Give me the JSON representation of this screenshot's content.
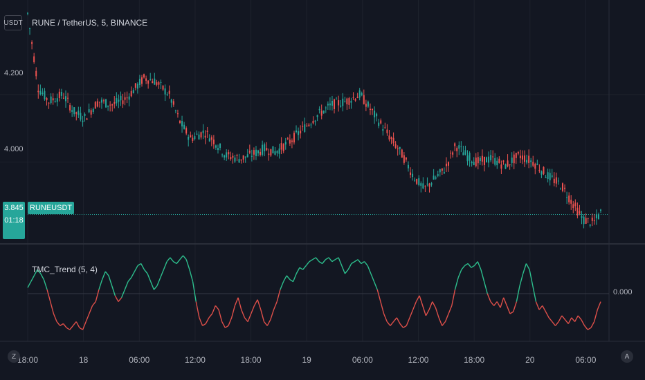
{
  "toolbar": {
    "currency_button": "USDT"
  },
  "main_chart": {
    "title": "RUNE / TetherUS, 5, BINANCE",
    "y_labels": [
      "4.200",
      "4.000"
    ],
    "last_price": "3.845",
    "countdown": "01:18",
    "symbol_tag": "RUNEUSDT"
  },
  "indicator": {
    "title": "TMC_Trend (5, 4)",
    "y_label": "0.000",
    "colors": {
      "up": "#26a69a",
      "down": "#ef5350",
      "line_up": "#2dc08e",
      "line_down": "#e0504a"
    }
  },
  "time_axis": {
    "labels": [
      "18:00",
      "18",
      "06:00",
      "12:00",
      "18:00",
      "19",
      "06:00",
      "12:00",
      "18:00",
      "20",
      "06:00"
    ]
  },
  "corner_buttons": {
    "left": "Z",
    "right": "A"
  },
  "chart_data": [
    {
      "type": "candlestick",
      "title": "RUNE / TetherUS, 5, BINANCE",
      "x": [
        "18:00",
        "18",
        "06:00",
        "12:00",
        "18:00",
        "19",
        "06:00",
        "12:00",
        "18:00",
        "20",
        "06:00"
      ],
      "ylim": [
        3.76,
        4.48
      ],
      "yticks": [
        4.2,
        4.0
      ],
      "close_path": [
        [
          0,
          4.44
        ],
        [
          0.3,
          4.22
        ],
        [
          0.6,
          4.18
        ],
        [
          1.0,
          4.2
        ],
        [
          1.3,
          4.15
        ],
        [
          1.6,
          4.13
        ],
        [
          2.0,
          4.18
        ],
        [
          2.4,
          4.17
        ],
        [
          2.8,
          4.19
        ],
        [
          3.3,
          4.25
        ],
        [
          3.6,
          4.24
        ],
        [
          4.0,
          4.2
        ],
        [
          4.3,
          4.12
        ],
        [
          4.6,
          4.07
        ],
        [
          5.0,
          4.09
        ],
        [
          5.3,
          4.06
        ],
        [
          5.6,
          4.02
        ],
        [
          6.0,
          4.01
        ],
        [
          6.3,
          4.02
        ],
        [
          6.7,
          4.04
        ],
        [
          7.0,
          4.03
        ],
        [
          7.4,
          4.06
        ],
        [
          7.8,
          4.1
        ],
        [
          8.2,
          4.14
        ],
        [
          8.6,
          4.17
        ],
        [
          9.0,
          4.18
        ],
        [
          9.4,
          4.2
        ],
        [
          9.8,
          4.14
        ],
        [
          10.2,
          4.08
        ],
        [
          10.6,
          4.02
        ],
        [
          10.9,
          3.96
        ],
        [
          11.2,
          3.92
        ],
        [
          11.5,
          3.95
        ],
        [
          11.8,
          3.98
        ],
        [
          12.1,
          4.05
        ],
        [
          12.4,
          4.02
        ],
        [
          12.7,
          4.0
        ],
        [
          13.1,
          4.01
        ],
        [
          13.5,
          3.99
        ],
        [
          13.9,
          4.02
        ],
        [
          14.3,
          4.0
        ],
        [
          14.7,
          3.96
        ],
        [
          15.1,
          3.93
        ],
        [
          15.4,
          3.88
        ],
        [
          15.7,
          3.83
        ],
        [
          16.0,
          3.82
        ],
        [
          16.2,
          3.85
        ]
      ],
      "last_price": 3.845
    },
    {
      "type": "line",
      "title": "TMC_Trend (5, 4)",
      "ylim": [
        -1,
        1
      ],
      "reference_line": 0.0,
      "values": [
        0.15,
        0.3,
        0.45,
        0.6,
        0.5,
        0.35,
        0.1,
        -0.2,
        -0.5,
        -0.7,
        -0.8,
        -0.75,
        -0.85,
        -0.9,
        -0.8,
        -0.7,
        -0.85,
        -0.9,
        -0.7,
        -0.5,
        -0.3,
        -0.2,
        0.1,
        0.35,
        0.55,
        0.45,
        0.2,
        -0.05,
        -0.2,
        -0.1,
        0.1,
        0.3,
        0.4,
        0.55,
        0.7,
        0.75,
        0.6,
        0.5,
        0.3,
        0.1,
        0.2,
        0.4,
        0.6,
        0.8,
        0.9,
        0.8,
        0.75,
        0.85,
        0.95,
        0.85,
        0.6,
        0.3,
        -0.2,
        -0.6,
        -0.8,
        -0.75,
        -0.6,
        -0.5,
        -0.3,
        -0.4,
        -0.7,
        -0.85,
        -0.8,
        -0.6,
        -0.3,
        -0.1,
        -0.4,
        -0.6,
        -0.7,
        -0.5,
        -0.3,
        -0.15,
        -0.4,
        -0.7,
        -0.8,
        -0.65,
        -0.4,
        -0.2,
        0.1,
        0.3,
        0.45,
        0.35,
        0.3,
        0.5,
        0.65,
        0.6,
        0.7,
        0.8,
        0.85,
        0.9,
        0.8,
        0.75,
        0.85,
        0.9,
        0.8,
        0.85,
        0.9,
        0.7,
        0.5,
        0.6,
        0.75,
        0.8,
        0.85,
        0.75,
        0.8,
        0.7,
        0.5,
        0.3,
        0.1,
        -0.2,
        -0.5,
        -0.7,
        -0.8,
        -0.7,
        -0.6,
        -0.75,
        -0.85,
        -0.8,
        -0.6,
        -0.4,
        -0.2,
        -0.05,
        -0.3,
        -0.55,
        -0.4,
        -0.2,
        -0.35,
        -0.6,
        -0.8,
        -0.7,
        -0.5,
        -0.3,
        0.1,
        0.4,
        0.6,
        0.7,
        0.75,
        0.65,
        0.7,
        0.8,
        0.6,
        0.3,
        0.0,
        -0.2,
        -0.3,
        -0.2,
        -0.35,
        -0.1,
        -0.3,
        -0.5,
        -0.45,
        -0.2,
        0.2,
        0.5,
        0.75,
        0.6,
        0.2,
        -0.2,
        -0.4,
        -0.3,
        -0.45,
        -0.6,
        -0.7,
        -0.8,
        -0.7,
        -0.55,
        -0.65,
        -0.75,
        -0.6,
        -0.7,
        -0.55,
        -0.65,
        -0.8,
        -0.9,
        -0.85,
        -0.7,
        -0.4,
        -0.2
      ]
    }
  ]
}
